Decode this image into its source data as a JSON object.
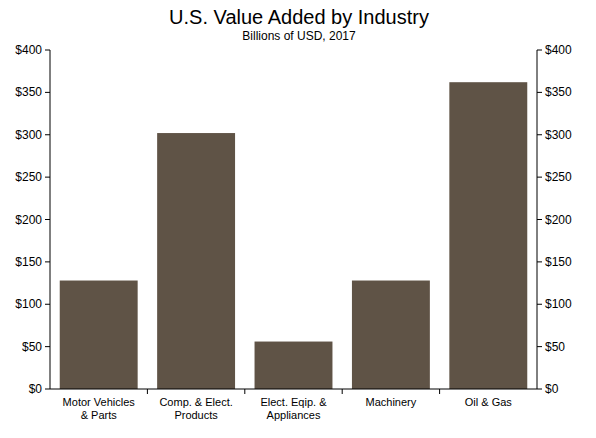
{
  "chart_data": {
    "type": "bar",
    "title": "U.S. Value Added by Industry",
    "subtitle": "Billions of USD, 2017",
    "categories": [
      "Motor Vehicles\n& Parts",
      "Comp. & Elect.\nProducts",
      "Elect. Eqip. &\nAppliances",
      "Machinery",
      "Oil & Gas"
    ],
    "values": [
      128,
      302,
      56,
      128,
      362
    ],
    "color": "#5f5346",
    "ylim": [
      0,
      400
    ],
    "yticks": [
      {
        "value": 0,
        "label": "$0"
      },
      {
        "value": 50,
        "label": "$50"
      },
      {
        "value": 100,
        "label": "$100"
      },
      {
        "value": 150,
        "label": "$150"
      },
      {
        "value": 200,
        "label": "$200"
      },
      {
        "value": 250,
        "label": "$250"
      },
      {
        "value": 300,
        "label": "$300"
      },
      {
        "value": 350,
        "label": "$350"
      },
      {
        "value": 400,
        "label": "$400"
      }
    ],
    "grid": false
  }
}
